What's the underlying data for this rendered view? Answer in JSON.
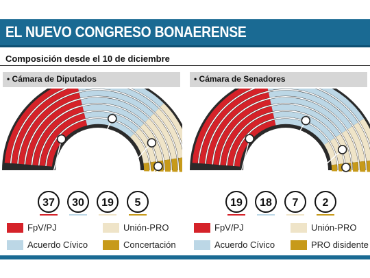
{
  "header": {
    "title": "EL NUEVO CONGRESO BONAERENSE"
  },
  "subtitle": "Composición desde el 10 de diciembre",
  "colors": {
    "fpv": "#d52229",
    "acuerdo": "#bcd7e6",
    "union": "#efe4c8",
    "concertacion": "#c79a1a",
    "back": "#2a2a2a"
  },
  "chart_data": [
    {
      "type": "parliament",
      "title": "Cámara de Diputados",
      "series": [
        {
          "name": "FpV/PJ",
          "value": 37,
          "color": "#d52229"
        },
        {
          "name": "Acuerdo Cívico",
          "value": 30,
          "color": "#bcd7e6"
        },
        {
          "name": "Unión-PRO",
          "value": 19,
          "color": "#efe4c8"
        },
        {
          "name": "Concertación",
          "value": 5,
          "color": "#c79a1a"
        }
      ]
    },
    {
      "type": "parliament",
      "title": "Cámara de Senadores",
      "series": [
        {
          "name": "FpV/PJ",
          "value": 19,
          "color": "#d52229"
        },
        {
          "name": "Acuerdo Cívico",
          "value": 18,
          "color": "#bcd7e6"
        },
        {
          "name": "Unión-PRO",
          "value": 7,
          "color": "#efe4c8"
        },
        {
          "name": "PRO disidente",
          "value": 2,
          "color": "#c79a1a"
        }
      ]
    }
  ]
}
